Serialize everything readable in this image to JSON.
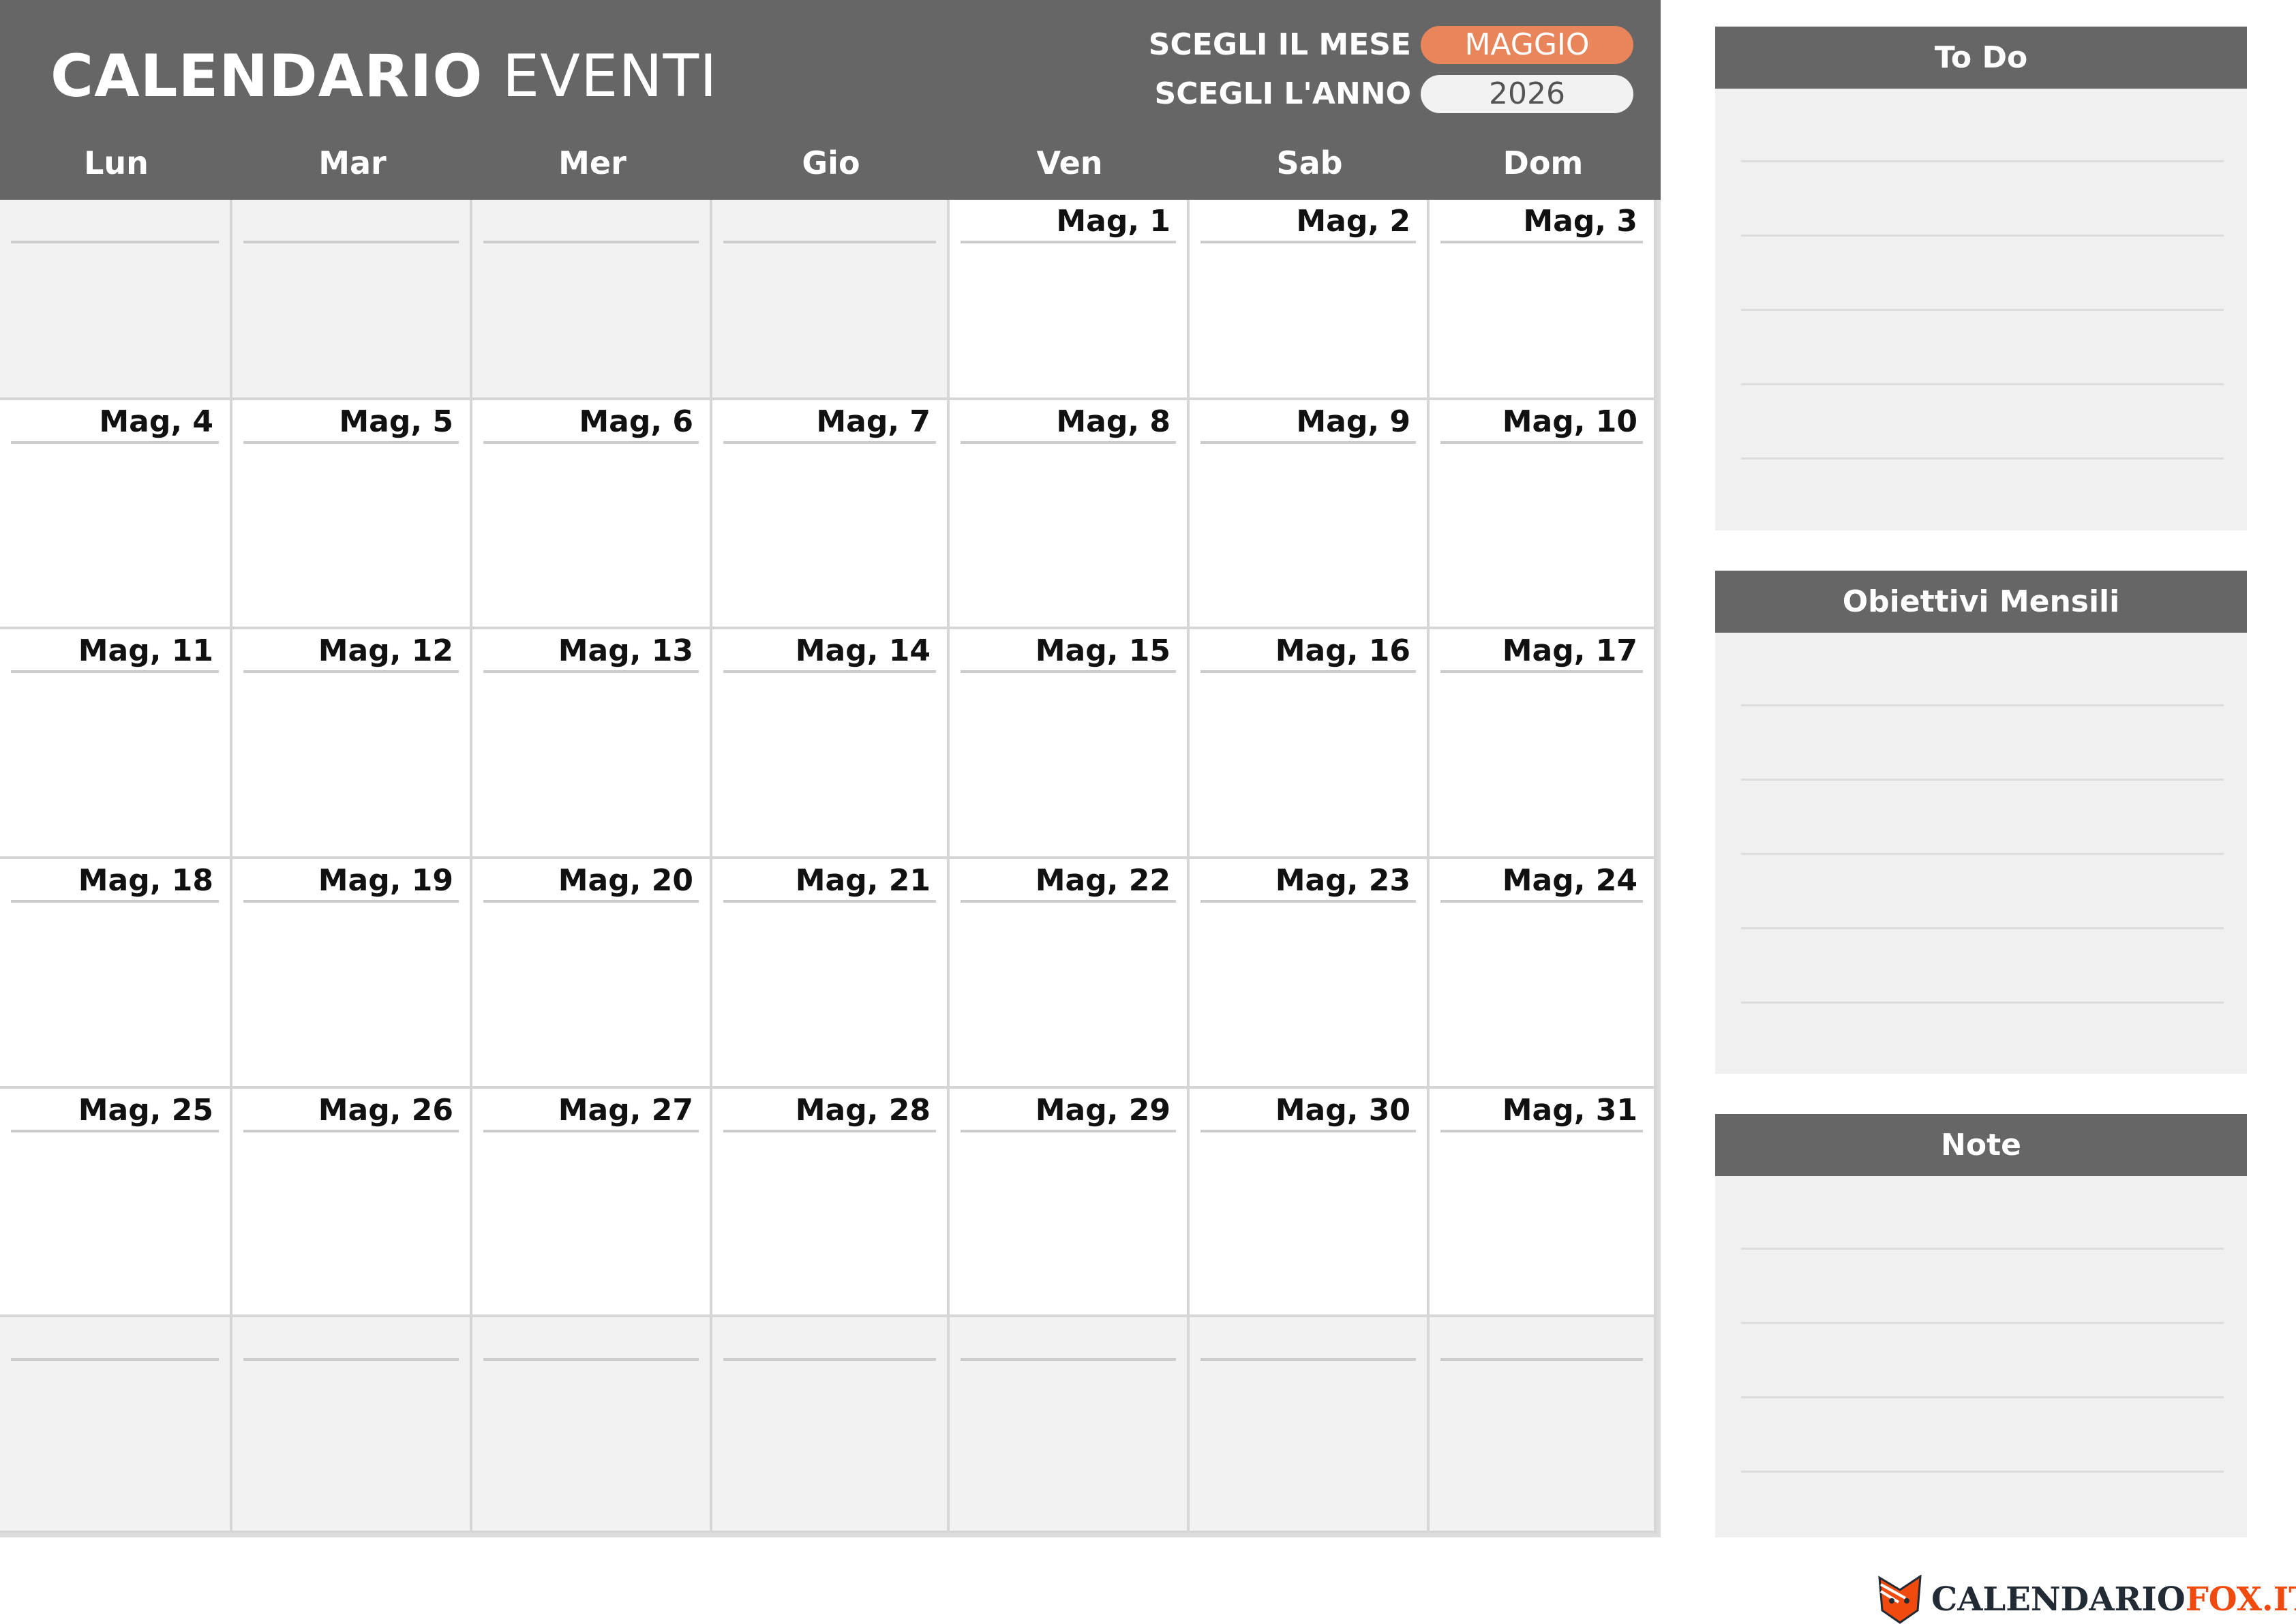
{
  "header": {
    "title_bold": "CALENDARIO",
    "title_regular": "EVENTI",
    "month_label": "SCEGLI IL MESE",
    "month_value": "MAGGIO",
    "year_label": "SCEGLI L'ANNO",
    "year_value": "2026"
  },
  "colors": {
    "header": "#666666",
    "accent": "#e8855a",
    "empty_cell": "#f2f2f2",
    "panel": "#f0f0f0",
    "brand_orange": "#f04a0e"
  },
  "weekdays": [
    "Lun",
    "Mar",
    "Mer",
    "Gio",
    "Ven",
    "Sab",
    "Dom"
  ],
  "weeks": [
    [
      "",
      "",
      "",
      "",
      "Mag, 1",
      "Mag, 2",
      "Mag, 3"
    ],
    [
      "Mag, 4",
      "Mag, 5",
      "Mag, 6",
      "Mag, 7",
      "Mag, 8",
      "Mag, 9",
      "Mag, 10"
    ],
    [
      "Mag, 11",
      "Mag, 12",
      "Mag, 13",
      "Mag, 14",
      "Mag, 15",
      "Mag, 16",
      "Mag, 17"
    ],
    [
      "Mag, 18",
      "Mag, 19",
      "Mag, 20",
      "Mag, 21",
      "Mag, 22",
      "Mag, 23",
      "Mag, 24"
    ],
    [
      "Mag, 25",
      "Mag, 26",
      "Mag, 27",
      "Mag, 28",
      "Mag, 29",
      "Mag, 30",
      "Mag, 31"
    ],
    [
      "",
      "",
      "",
      "",
      "",
      "",
      ""
    ]
  ],
  "panels": [
    {
      "title": "To Do"
    },
    {
      "title": "Obiettivi Mensili"
    },
    {
      "title": "Note"
    }
  ],
  "logo": {
    "text_dark": "CALENDARIO",
    "text_orange": "FOX.IT",
    "icon": "fox-icon"
  }
}
